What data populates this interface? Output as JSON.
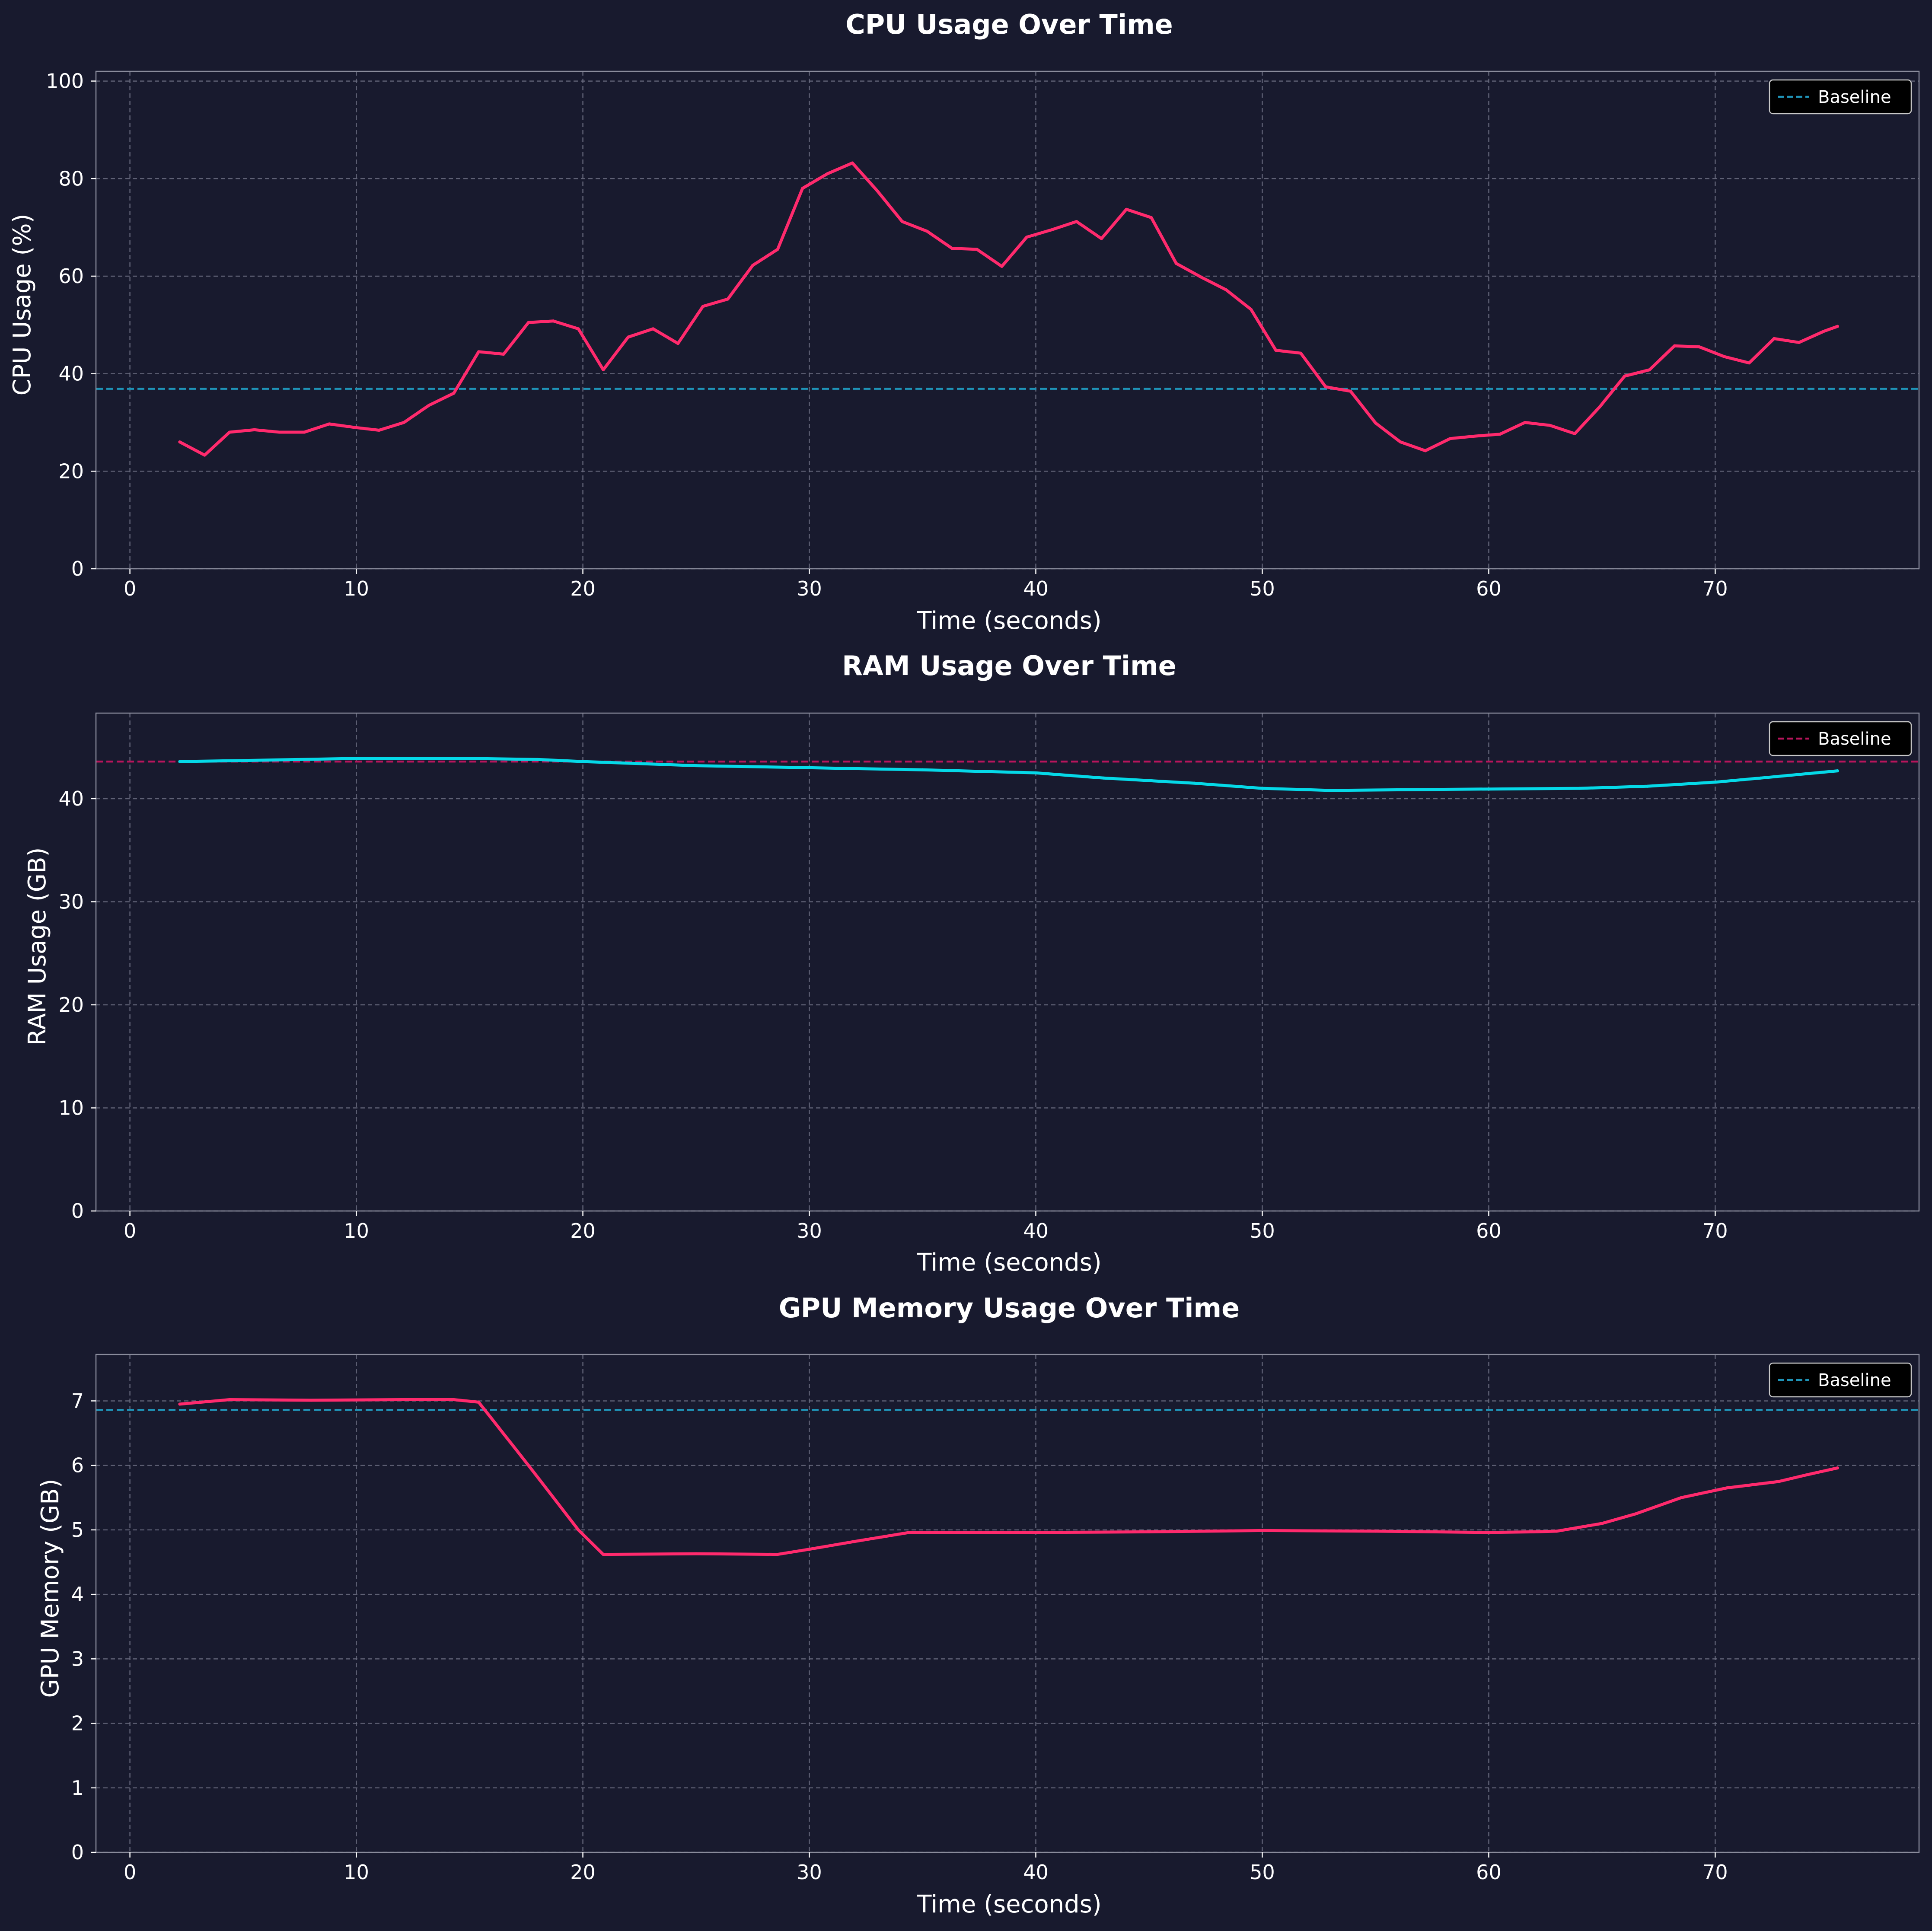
{
  "chart_data": [
    {
      "type": "line",
      "title": "CPU Usage Over Time",
      "xlabel": "Time (seconds)",
      "ylabel": "CPU Usage (%)",
      "xlim": [
        -1.5,
        79
      ],
      "ylim": [
        0,
        102
      ],
      "xticks": [
        0,
        10,
        20,
        30,
        40,
        50,
        60,
        70
      ],
      "yticks": [
        0,
        20,
        40,
        60,
        80,
        100
      ],
      "grid": true,
      "legend_position": "top-right",
      "series": [
        {
          "color": "#ff2a6d",
          "x": [
            2.2,
            3.3,
            4.4,
            5.5,
            6.6,
            7.7,
            8.8,
            9.9,
            11.0,
            12.1,
            13.2,
            14.3,
            15.4,
            16.5,
            17.6,
            18.7,
            19.8,
            20.9,
            22.0,
            23.1,
            24.2,
            25.3,
            26.4,
            27.5,
            28.6,
            29.7,
            30.8,
            31.9,
            33.0,
            34.1,
            35.2,
            36.3,
            37.4,
            38.5,
            39.6,
            40.7,
            41.8,
            42.9,
            44.0,
            45.1,
            46.2,
            47.3,
            48.4,
            49.5,
            50.6,
            51.7,
            52.8,
            53.9,
            55.0,
            56.1,
            57.2,
            58.3,
            59.4,
            60.5,
            61.6,
            62.7,
            63.8,
            64.9,
            66.0,
            67.1,
            68.2,
            69.3,
            70.4,
            71.5,
            72.6,
            73.7,
            74.8,
            75.4
          ],
          "y": [
            26,
            23.3,
            28,
            28.5,
            28,
            28,
            29.7,
            29,
            28.4,
            30,
            33.5,
            36,
            44.5,
            44,
            50.5,
            50.8,
            49.2,
            40.8,
            47.5,
            49.2,
            46.2,
            53.8,
            55.3,
            62.2,
            65.5,
            78,
            81,
            83.2,
            77.5,
            71.2,
            69.2,
            65.7,
            65.5,
            62,
            68,
            69.5,
            71.2,
            67.7,
            73.7,
            72,
            62.6,
            59.8,
            57.2,
            53.2,
            44.8,
            44.2,
            37.3,
            36.4,
            29.9,
            26,
            24.2,
            26.7,
            27.2,
            27.6,
            30,
            29.4,
            27.7,
            33.2,
            39.5,
            40.8,
            45.7,
            45.5,
            43.5,
            42.2,
            47.2,
            46.4,
            48.7,
            49.7
          ]
        }
      ],
      "baseline": {
        "name": "Baseline",
        "value": 36.9,
        "color": "#1f94b8"
      }
    },
    {
      "type": "line",
      "title": "RAM Usage Over Time",
      "xlabel": "Time (seconds)",
      "ylabel": "RAM Usage (GB)",
      "xlim": [
        -1.5,
        79
      ],
      "ylim": [
        0,
        48.3
      ],
      "xticks": [
        0,
        10,
        20,
        30,
        40,
        50,
        60,
        70
      ],
      "yticks": [
        0,
        10,
        20,
        30,
        40
      ],
      "grid": true,
      "legend_position": "top-right",
      "series": [
        {
          "color": "#05d9e8",
          "x": [
            2.2,
            5,
            10,
            15,
            18,
            20,
            25,
            30,
            35,
            40,
            43,
            47,
            50,
            53,
            58,
            64,
            67,
            70,
            72,
            75.4
          ],
          "y": [
            43.6,
            43.7,
            43.9,
            43.9,
            43.8,
            43.6,
            43.2,
            43.0,
            42.8,
            42.5,
            42.0,
            41.5,
            41.0,
            40.8,
            40.9,
            41.0,
            41.2,
            41.6,
            42.0,
            42.7
          ]
        }
      ],
      "baseline": {
        "name": "Baseline",
        "value": 43.6,
        "color": "#b8155c"
      }
    },
    {
      "type": "line",
      "title": "GPU Memory Usage Over Time",
      "xlabel": "Time (seconds)",
      "ylabel": "GPU Memory (GB)",
      "xlim": [
        -1.5,
        79
      ],
      "ylim": [
        0,
        7.72
      ],
      "xticks": [
        0,
        10,
        20,
        30,
        40,
        50,
        60,
        70
      ],
      "yticks": [
        0,
        1,
        2,
        3,
        4,
        5,
        6,
        7
      ],
      "grid": true,
      "legend_position": "top-right",
      "series": [
        {
          "color": "#ff2a6d",
          "x": [
            2.2,
            4.4,
            8,
            12,
            14.3,
            15.4,
            17.6,
            19.8,
            20.9,
            25,
            28.6,
            30,
            32,
            34.4,
            40,
            45,
            50,
            55,
            60,
            62,
            63,
            65,
            66.5,
            68.5,
            70.5,
            72.8,
            74,
            75.4
          ],
          "y": [
            6.95,
            7.02,
            7.01,
            7.02,
            7.02,
            6.98,
            6.0,
            5.0,
            4.62,
            4.63,
            4.62,
            4.7,
            4.82,
            4.96,
            4.96,
            4.97,
            4.99,
            4.98,
            4.96,
            4.97,
            4.98,
            5.1,
            5.25,
            5.5,
            5.65,
            5.75,
            5.85,
            5.96
          ]
        }
      ],
      "baseline": {
        "name": "Baseline",
        "value": 6.86,
        "color": "#1f94b8"
      }
    }
  ]
}
